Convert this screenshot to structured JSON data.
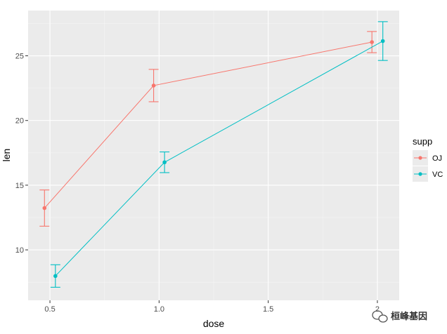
{
  "chart_data": {
    "type": "line",
    "xlabel": "dose",
    "ylabel": "len",
    "xlim": [
      0.4,
      2.1
    ],
    "ylim": [
      6.1,
      28.5
    ],
    "x_ticks": [
      0.5,
      1.0,
      1.5,
      2.0
    ],
    "x_tick_labels": [
      "0.5",
      "1.0",
      "1.5",
      "2"
    ],
    "y_ticks": [
      10,
      15,
      20,
      25
    ],
    "y_tick_labels": [
      "10",
      "15",
      "20",
      "25"
    ],
    "grid": true,
    "legend": {
      "title": "supp",
      "position": "right"
    },
    "series": [
      {
        "name": "OJ",
        "color": "#F8766D",
        "x": [
          0.475,
          0.975,
          1.975
        ],
        "y": [
          13.23,
          22.7,
          26.06
        ],
        "err_low": [
          11.83,
          21.45,
          25.24
        ],
        "err_high": [
          14.63,
          23.95,
          26.88
        ]
      },
      {
        "name": "VC",
        "color": "#00BFC4",
        "x": [
          0.525,
          1.025,
          2.025
        ],
        "y": [
          7.98,
          16.77,
          26.14
        ],
        "err_low": [
          7.11,
          15.97,
          24.64
        ],
        "err_high": [
          8.85,
          17.57,
          27.64
        ]
      }
    ]
  },
  "watermark": {
    "text": "桓峰基因",
    "icon": "wechat-icon"
  }
}
